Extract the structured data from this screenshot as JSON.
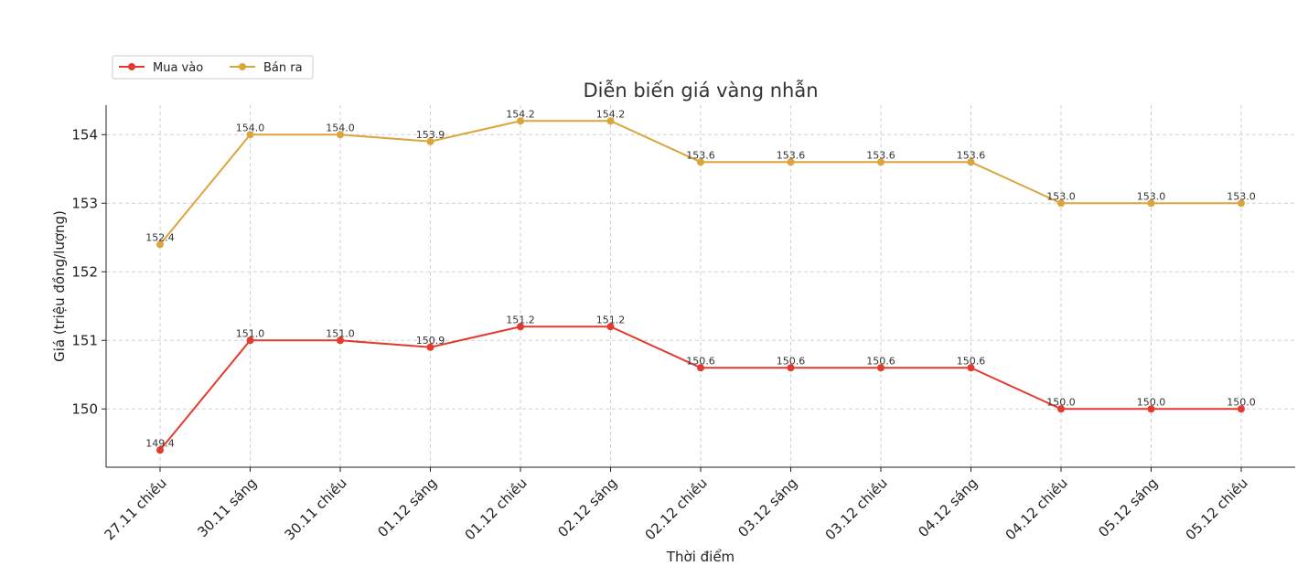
{
  "chart_data": {
    "type": "line",
    "title": "Diễn biến giá vàng nhẫn",
    "xlabel": "Thời điểm",
    "ylabel": "Giá (triệu đồng/lượng)",
    "categories": [
      "27.11 chiều",
      "30.11 sáng",
      "30.11 chiều",
      "01.12 sáng",
      "01.12 chiều",
      "02.12 sáng",
      "02.12 chiều",
      "03.12 sáng",
      "03.12 chiều",
      "04.12 sáng",
      "04.12 chiều",
      "05.12 sáng",
      "05.12 chiều"
    ],
    "series": [
      {
        "name": "Mua vào",
        "color": "#e23b2e",
        "values": [
          149.4,
          151.0,
          151.0,
          150.9,
          151.2,
          151.2,
          150.6,
          150.6,
          150.6,
          150.6,
          150.0,
          150.0,
          150.0
        ]
      },
      {
        "name": "Bán ra",
        "color": "#dca43c",
        "values": [
          152.4,
          154.0,
          154.0,
          153.9,
          154.2,
          154.2,
          153.6,
          153.6,
          153.6,
          153.6,
          153.0,
          153.0,
          153.0
        ]
      }
    ],
    "yticks": [
      150,
      151,
      152,
      153,
      154
    ],
    "ylim": [
      149.15,
      154.43
    ],
    "grid": true,
    "legend": "top-left",
    "data_labels": true
  }
}
